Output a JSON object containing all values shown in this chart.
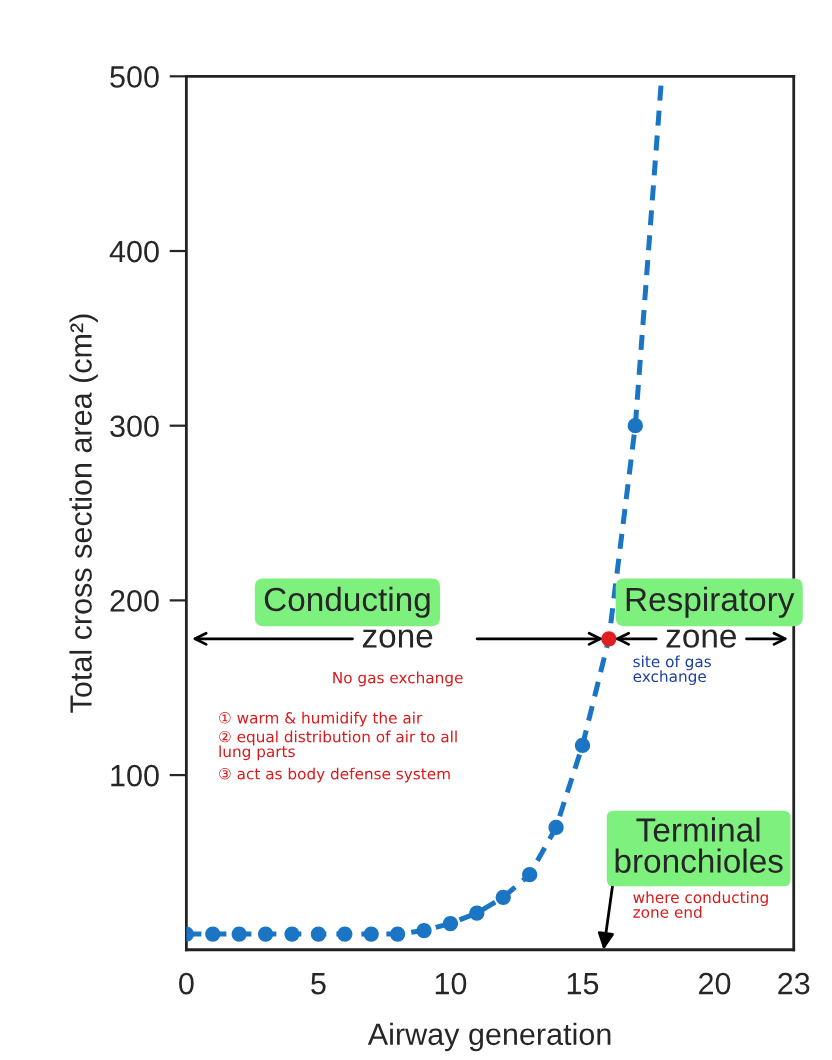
{
  "chart_data": {
    "type": "line",
    "xlabel": "Airway generation",
    "ylabel": "Total cross section area (cm²)",
    "xlim": [
      0,
      23
    ],
    "ylim": [
      0,
      500
    ],
    "xticks": [
      0,
      5,
      10,
      15,
      20,
      23
    ],
    "yticks": [
      100,
      200,
      300,
      400,
      500
    ],
    "grid": false,
    "legend": false,
    "series": [
      {
        "type": "scatter",
        "marker": "circle",
        "color": "#1a75c4",
        "colors": [
          "#1a75c4",
          "#1a75c4",
          "#1a75c4",
          "#1a75c4",
          "#1a75c4",
          "#1a75c4",
          "#1a75c4",
          "#1a75c4",
          "#1a75c4",
          "#1a75c4",
          "#1a75c4",
          "#1a75c4",
          "#1a75c4",
          "#1a75c4",
          "#1a75c4",
          "#1a75c4",
          "#e02020",
          "#1a75c4"
        ],
        "x": [
          0,
          1,
          2,
          3,
          4,
          5,
          6,
          7,
          8,
          9,
          10,
          11,
          12,
          13,
          14,
          15,
          16,
          17
        ],
        "values": [
          9,
          9,
          9,
          9,
          9,
          9,
          9,
          9,
          9,
          11,
          15,
          21,
          30,
          43,
          70,
          117,
          178,
          300
        ]
      },
      {
        "marker": "none",
        "line_style": "dashed",
        "color": "#1a75c4",
        "x": [
          0,
          1,
          2,
          3,
          4,
          5,
          6,
          7,
          8,
          9,
          10,
          11,
          12,
          13,
          14,
          15,
          16,
          17,
          18
        ],
        "values": [
          9,
          9,
          9,
          9,
          9,
          9,
          9,
          9,
          9,
          11,
          15,
          21,
          30,
          43,
          70,
          117,
          178,
          300,
          500
        ]
      }
    ],
    "annotations": [
      "Conducting zone",
      "Respiratory zone",
      "Terminal bronchioles",
      "No gas exchange",
      "① warm & humidify the air",
      "② equal distribution of air to all\nlung parts",
      "③ act as body defense system",
      "site of gas\nexchange",
      "where conducting\nzone end"
    ]
  }
}
